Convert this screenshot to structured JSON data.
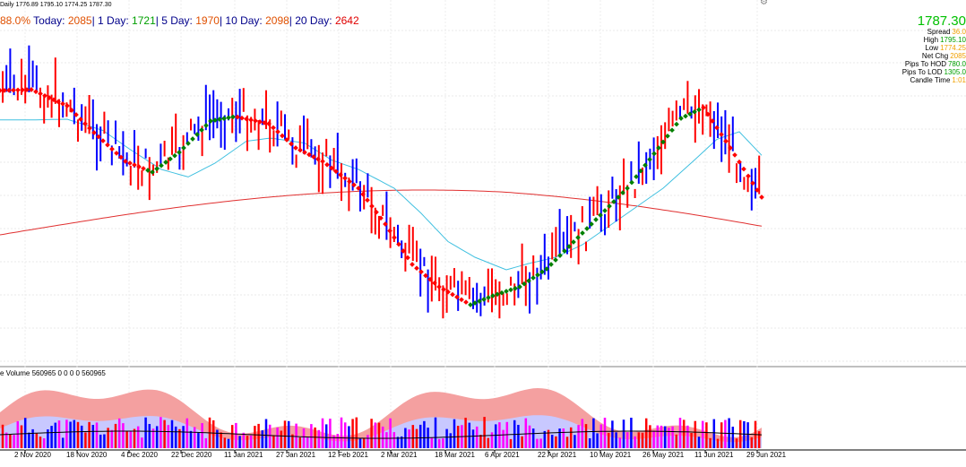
{
  "header": {
    "ohlc": "Daily  1776.89 1795.10 1774.25 1787.30"
  },
  "stats": {
    "percent": "88.0%",
    "today_label": "Today:",
    "today_value": "2085",
    "day1_label": "1 Day:",
    "day1_value": "1721",
    "day5_label": "5 Day:",
    "day5_value": "1970",
    "day10_label": "10 Day:",
    "day10_value": "2098",
    "day20_label": "20 Day:",
    "day20_value": "2642"
  },
  "info_panel": {
    "price": "1787.30",
    "rows": [
      {
        "label": "Spread",
        "value": "36.0"
      },
      {
        "label": "High",
        "value": "1795.10"
      },
      {
        "label": "Low",
        "value": "1774.25"
      },
      {
        "label": "Net Chg",
        "value": "2085"
      },
      {
        "label": "Pips To HOD",
        "value": "780.0"
      },
      {
        "label": "Pips To LOD",
        "value": "1305.0"
      },
      {
        "label": "Candle Time",
        "value": "1:01"
      }
    ]
  },
  "volume_label": "e Volume 560965 0 0 0 0 560965",
  "date_labels": [
    "2 Nov 2020",
    "18 Nov 2020",
    "4 Dec 2020",
    "22 Dec 2020",
    "11 Jan 2021",
    "27 Jan 2021",
    "12 Feb 2021",
    "2 Mar 2021",
    "18 Mar 2021",
    "6 Apr 2021",
    "22 Apr 2021",
    "10 May 2021",
    "26 May 2021",
    "11 Jun 2021",
    "29 Jun 2021"
  ],
  "colors": {
    "bull": "#0000ff",
    "bear": "#ff0000",
    "trend_up": "#008000",
    "trend_down": "#ff0000",
    "ma_slow": "#e03030",
    "ma_fast": "#40c0e0",
    "vol_pink": "#f4a0a0",
    "vol_lavender": "#c8c8ff",
    "vol_magenta": "#ff00ff"
  }
}
